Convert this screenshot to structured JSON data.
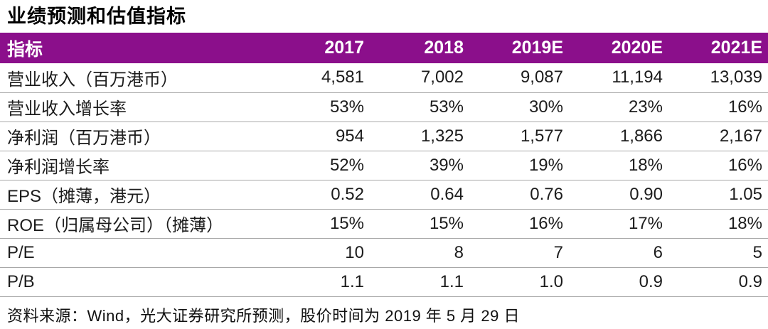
{
  "title": "业绩预测和估值指标",
  "colors": {
    "header_bg": "#8B0F8B",
    "header_text": "#FFFFFF",
    "row_border": "#A8A8A8",
    "text": "#1C1C1C"
  },
  "table": {
    "columns": [
      "指标",
      "2017",
      "2018",
      "2019E",
      "2020E",
      "2021E"
    ],
    "rows": [
      {
        "label": "营业收入（百万港币）",
        "values": [
          "4,581",
          "7,002",
          "9,087",
          "11,194",
          "13,039"
        ]
      },
      {
        "label": "营业收入增长率",
        "values": [
          "53%",
          "53%",
          "30%",
          "23%",
          "16%"
        ]
      },
      {
        "label": "净利润（百万港币）",
        "values": [
          "954",
          "1,325",
          "1,577",
          "1,866",
          "2,167"
        ]
      },
      {
        "label": "净利润增长率",
        "values": [
          "52%",
          "39%",
          "19%",
          "18%",
          "16%"
        ]
      },
      {
        "label": "EPS（摊薄，港元）",
        "values": [
          "0.52",
          "0.64",
          "0.76",
          "0.90",
          "1.05"
        ]
      },
      {
        "label": "ROE（归属母公司）（摊薄）",
        "values": [
          "15%",
          "15%",
          "16%",
          "17%",
          "18%"
        ]
      },
      {
        "label": "P/E",
        "values": [
          "10",
          "8",
          "7",
          "6",
          "5"
        ]
      },
      {
        "label": "P/B",
        "values": [
          "1.1",
          "1.1",
          "1.0",
          "0.9",
          "0.9"
        ]
      }
    ]
  },
  "footer": {
    "source": "资料来源：Wind，光大证券研究所预测，股价时间为 2019 年 5 月 29 日"
  }
}
